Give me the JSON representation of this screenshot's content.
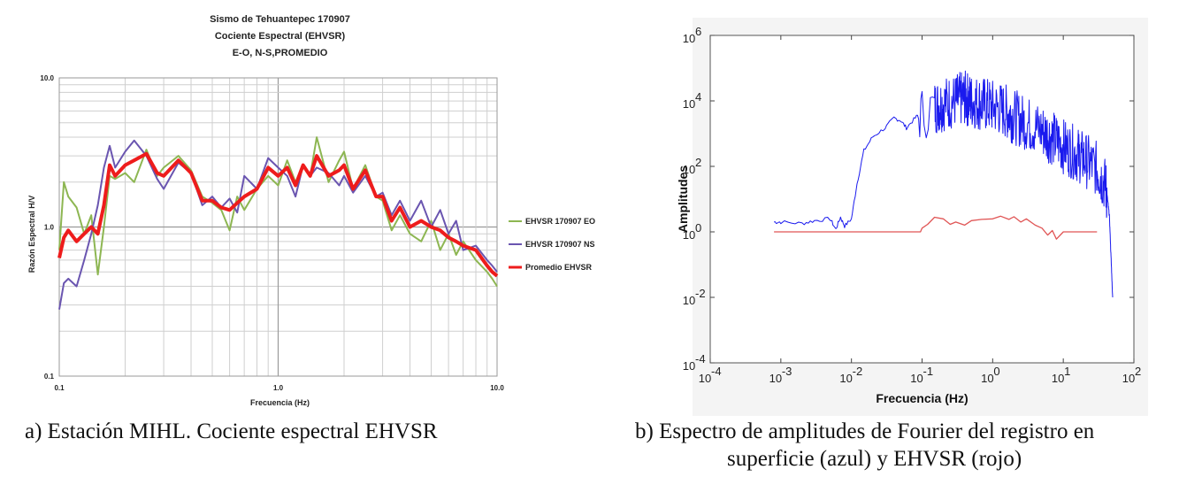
{
  "chart_data": [
    {
      "id": "a",
      "type": "line",
      "title_lines": [
        "Sismo de Tehuantepec 170907",
        "Cociente Espectral  (EHVSR)",
        "E-O, N-S,PROMEDIO"
      ],
      "xlabel": "Frecuencia (Hz)",
      "ylabel": "Razón Espectral  H/V",
      "xscale": "log",
      "yscale": "log",
      "xlim": [
        0.1,
        10.0
      ],
      "ylim": [
        0.1,
        10.0
      ],
      "xticks": [
        "0.1",
        "1.0",
        "10.0"
      ],
      "yticks": [
        "0.1",
        "1.0",
        "10.0"
      ],
      "grid": true,
      "legend_position": "right",
      "series": [
        {
          "name": "EHVSR 170907 EO",
          "color": "#8db652",
          "x": [
            0.1,
            0.105,
            0.11,
            0.12,
            0.13,
            0.14,
            0.15,
            0.16,
            0.17,
            0.18,
            0.2,
            0.22,
            0.25,
            0.28,
            0.3,
            0.35,
            0.4,
            0.45,
            0.5,
            0.55,
            0.6,
            0.65,
            0.7,
            0.8,
            0.9,
            1.0,
            1.1,
            1.2,
            1.3,
            1.4,
            1.5,
            1.7,
            1.9,
            2.0,
            2.2,
            2.5,
            2.8,
            3.0,
            3.3,
            3.6,
            4.0,
            4.5,
            5.0,
            5.5,
            6.0,
            6.5,
            7.0,
            8.0,
            9.0,
            9.5,
            10.0
          ],
          "y": [
            0.7,
            2.0,
            1.6,
            1.35,
            0.9,
            1.2,
            0.48,
            1.0,
            2.2,
            2.1,
            2.3,
            2.0,
            3.3,
            2.2,
            2.5,
            3.0,
            2.4,
            1.6,
            1.45,
            1.3,
            0.95,
            1.6,
            1.3,
            1.8,
            2.2,
            1.9,
            2.8,
            2.0,
            2.6,
            2.2,
            4.0,
            2.0,
            2.8,
            3.2,
            1.8,
            2.6,
            1.6,
            1.5,
            0.95,
            1.2,
            0.9,
            0.8,
            1.1,
            0.7,
            0.9,
            0.65,
            0.8,
            0.6,
            0.5,
            0.45,
            0.4
          ]
        },
        {
          "name": "EHVSR 170907 NS",
          "color": "#6a55b0",
          "x": [
            0.1,
            0.105,
            0.11,
            0.12,
            0.13,
            0.14,
            0.15,
            0.16,
            0.17,
            0.18,
            0.2,
            0.22,
            0.25,
            0.28,
            0.3,
            0.35,
            0.4,
            0.45,
            0.5,
            0.55,
            0.6,
            0.65,
            0.7,
            0.8,
            0.9,
            1.0,
            1.1,
            1.2,
            1.3,
            1.4,
            1.5,
            1.7,
            1.9,
            2.0,
            2.2,
            2.5,
            2.8,
            3.0,
            3.3,
            3.6,
            4.0,
            4.5,
            5.0,
            5.5,
            6.0,
            6.5,
            7.0,
            8.0,
            9.0,
            9.5,
            10.0
          ],
          "y": [
            0.28,
            0.42,
            0.45,
            0.4,
            0.6,
            0.9,
            1.4,
            2.5,
            3.5,
            2.5,
            3.2,
            3.8,
            3.0,
            2.1,
            1.8,
            2.7,
            2.3,
            1.4,
            1.6,
            1.35,
            1.55,
            1.25,
            2.2,
            1.8,
            2.9,
            2.5,
            2.2,
            1.6,
            2.6,
            2.2,
            2.5,
            2.3,
            1.9,
            2.2,
            1.7,
            2.2,
            1.6,
            1.7,
            1.2,
            1.5,
            1.1,
            1.5,
            1.0,
            1.3,
            0.9,
            1.1,
            0.7,
            0.75,
            0.6,
            0.55,
            0.5
          ]
        },
        {
          "name": "Promedio EHVSR",
          "color": "#ee1c1c",
          "x": [
            0.1,
            0.105,
            0.11,
            0.12,
            0.13,
            0.14,
            0.15,
            0.16,
            0.17,
            0.18,
            0.2,
            0.22,
            0.25,
            0.28,
            0.3,
            0.35,
            0.4,
            0.45,
            0.5,
            0.55,
            0.6,
            0.65,
            0.7,
            0.8,
            0.9,
            1.0,
            1.1,
            1.2,
            1.3,
            1.4,
            1.5,
            1.7,
            1.9,
            2.0,
            2.2,
            2.5,
            2.8,
            3.0,
            3.3,
            3.6,
            4.0,
            4.5,
            5.0,
            5.5,
            6.0,
            6.5,
            7.0,
            8.0,
            9.0,
            9.5,
            10.0
          ],
          "y": [
            0.62,
            0.85,
            0.95,
            0.8,
            0.9,
            1.0,
            0.9,
            1.4,
            2.6,
            2.2,
            2.6,
            2.8,
            3.1,
            2.3,
            2.2,
            2.8,
            2.3,
            1.5,
            1.5,
            1.35,
            1.3,
            1.45,
            1.6,
            1.8,
            2.5,
            2.2,
            2.5,
            1.9,
            2.6,
            2.2,
            3.0,
            2.2,
            2.4,
            2.6,
            1.8,
            2.4,
            1.6,
            1.6,
            1.1,
            1.35,
            1.0,
            1.1,
            1.0,
            0.95,
            0.85,
            0.8,
            0.75,
            0.7,
            0.55,
            0.5,
            0.47
          ]
        }
      ]
    },
    {
      "id": "b",
      "type": "line",
      "xlabel": "Frecuencia (Hz)",
      "ylabel": "Amplitudes",
      "xscale": "log",
      "yscale": "log",
      "xlim": [
        0.0001,
        100
      ],
      "ylim": [
        0.0001,
        1000000
      ],
      "xtick_bases": [
        "10",
        "10",
        "10",
        "10",
        "10",
        "10",
        "10"
      ],
      "xtick_exps": [
        "-4",
        "-3",
        "-2",
        "-1",
        "0",
        "1",
        "2"
      ],
      "ytick_bases": [
        "10",
        "10",
        "10",
        "10",
        "10",
        "10"
      ],
      "ytick_exps": [
        "-4",
        "-2",
        "0",
        "2",
        "4",
        "6"
      ],
      "grid": false,
      "series": [
        {
          "name": "superficie (azul)",
          "color": "#1a1aee",
          "x": [
            0.0008,
            0.001,
            0.002,
            0.003,
            0.005,
            0.006,
            0.007,
            0.008,
            0.01,
            0.012,
            0.015,
            0.02,
            0.03,
            0.04,
            0.05,
            0.06,
            0.08,
            0.1,
            0.15,
            0.2,
            0.3,
            0.4,
            0.5,
            0.7,
            1,
            1.5,
            2,
            3,
            5,
            7,
            10,
            15,
            20,
            30,
            40,
            45,
            50
          ],
          "y": [
            2,
            2,
            1.8,
            2.2,
            2.5,
            1.2,
            2.8,
            1.5,
            2.5,
            30,
            300,
            800,
            1500,
            3000,
            2500,
            1500,
            3000,
            5000,
            8000,
            10000,
            12000,
            15000,
            12000,
            10000,
            8000,
            6000,
            4000,
            2500,
            1500,
            900,
            500,
            300,
            200,
            100,
            30,
            3,
            0.01
          ],
          "jitter": true
        },
        {
          "name": "EHVSR (rojo)",
          "color": "#e05555",
          "x": [
            0.0008,
            0.01,
            0.05,
            0.095,
            0.1,
            0.12,
            0.15,
            0.2,
            0.25,
            0.3,
            0.4,
            0.5,
            0.7,
            1.0,
            1.3,
            1.7,
            2.0,
            2.5,
            3.0,
            4.0,
            5.0,
            6.0,
            7.0,
            8.0,
            10,
            15,
            20,
            25,
            30
          ],
          "y": [
            1,
            1,
            1,
            1,
            1.3,
            1.7,
            2.8,
            2.5,
            1.7,
            2.0,
            1.6,
            2.2,
            2.4,
            2.5,
            3.0,
            2.4,
            2.9,
            2.0,
            2.5,
            1.6,
            1.3,
            0.8,
            1.1,
            0.6,
            1,
            1,
            1,
            1,
            1
          ]
        }
      ]
    }
  ],
  "captions": {
    "a": "a) Estación MIHL. Cociente espectral EHVSR",
    "b_line1": "b) Espectro de amplitudes de Fourier del registro en",
    "b_line2": "superficie (azul) y EHVSR (rojo)"
  }
}
